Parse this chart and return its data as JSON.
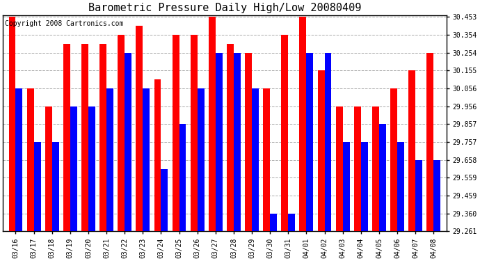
{
  "title": "Barometric Pressure Daily High/Low 20080409",
  "copyright": "Copyright 2008 Cartronics.com",
  "dates": [
    "03/16",
    "03/17",
    "03/18",
    "03/19",
    "03/20",
    "03/21",
    "03/22",
    "03/23",
    "03/24",
    "03/25",
    "03/26",
    "03/27",
    "03/28",
    "03/29",
    "03/30",
    "03/31",
    "04/01",
    "04/02",
    "04/03",
    "04/04",
    "04/05",
    "04/06",
    "04/07",
    "04/08"
  ],
  "highs": [
    30.453,
    30.056,
    29.956,
    30.304,
    30.304,
    30.304,
    30.354,
    30.403,
    30.106,
    30.354,
    30.354,
    30.453,
    30.304,
    30.254,
    30.056,
    30.354,
    30.453,
    30.155,
    29.956,
    29.956,
    29.956,
    30.056,
    30.155,
    30.254
  ],
  "lows": [
    30.056,
    29.757,
    29.757,
    29.956,
    29.957,
    30.056,
    30.254,
    30.056,
    29.608,
    29.857,
    30.056,
    30.254,
    30.254,
    30.056,
    29.36,
    29.36,
    30.254,
    30.254,
    29.757,
    29.757,
    29.857,
    29.757,
    29.658,
    29.658
  ],
  "high_color": "#ff0000",
  "low_color": "#0000ff",
  "bg_color": "#ffffff",
  "grid_color": "#aaaaaa",
  "title_fontsize": 11,
  "copyright_fontsize": 7,
  "tick_fontsize": 7,
  "ymin": 29.261,
  "ymax": 30.453,
  "yticks": [
    29.261,
    29.36,
    29.459,
    29.559,
    29.658,
    29.757,
    29.857,
    29.956,
    30.056,
    30.155,
    30.254,
    30.354,
    30.453
  ]
}
